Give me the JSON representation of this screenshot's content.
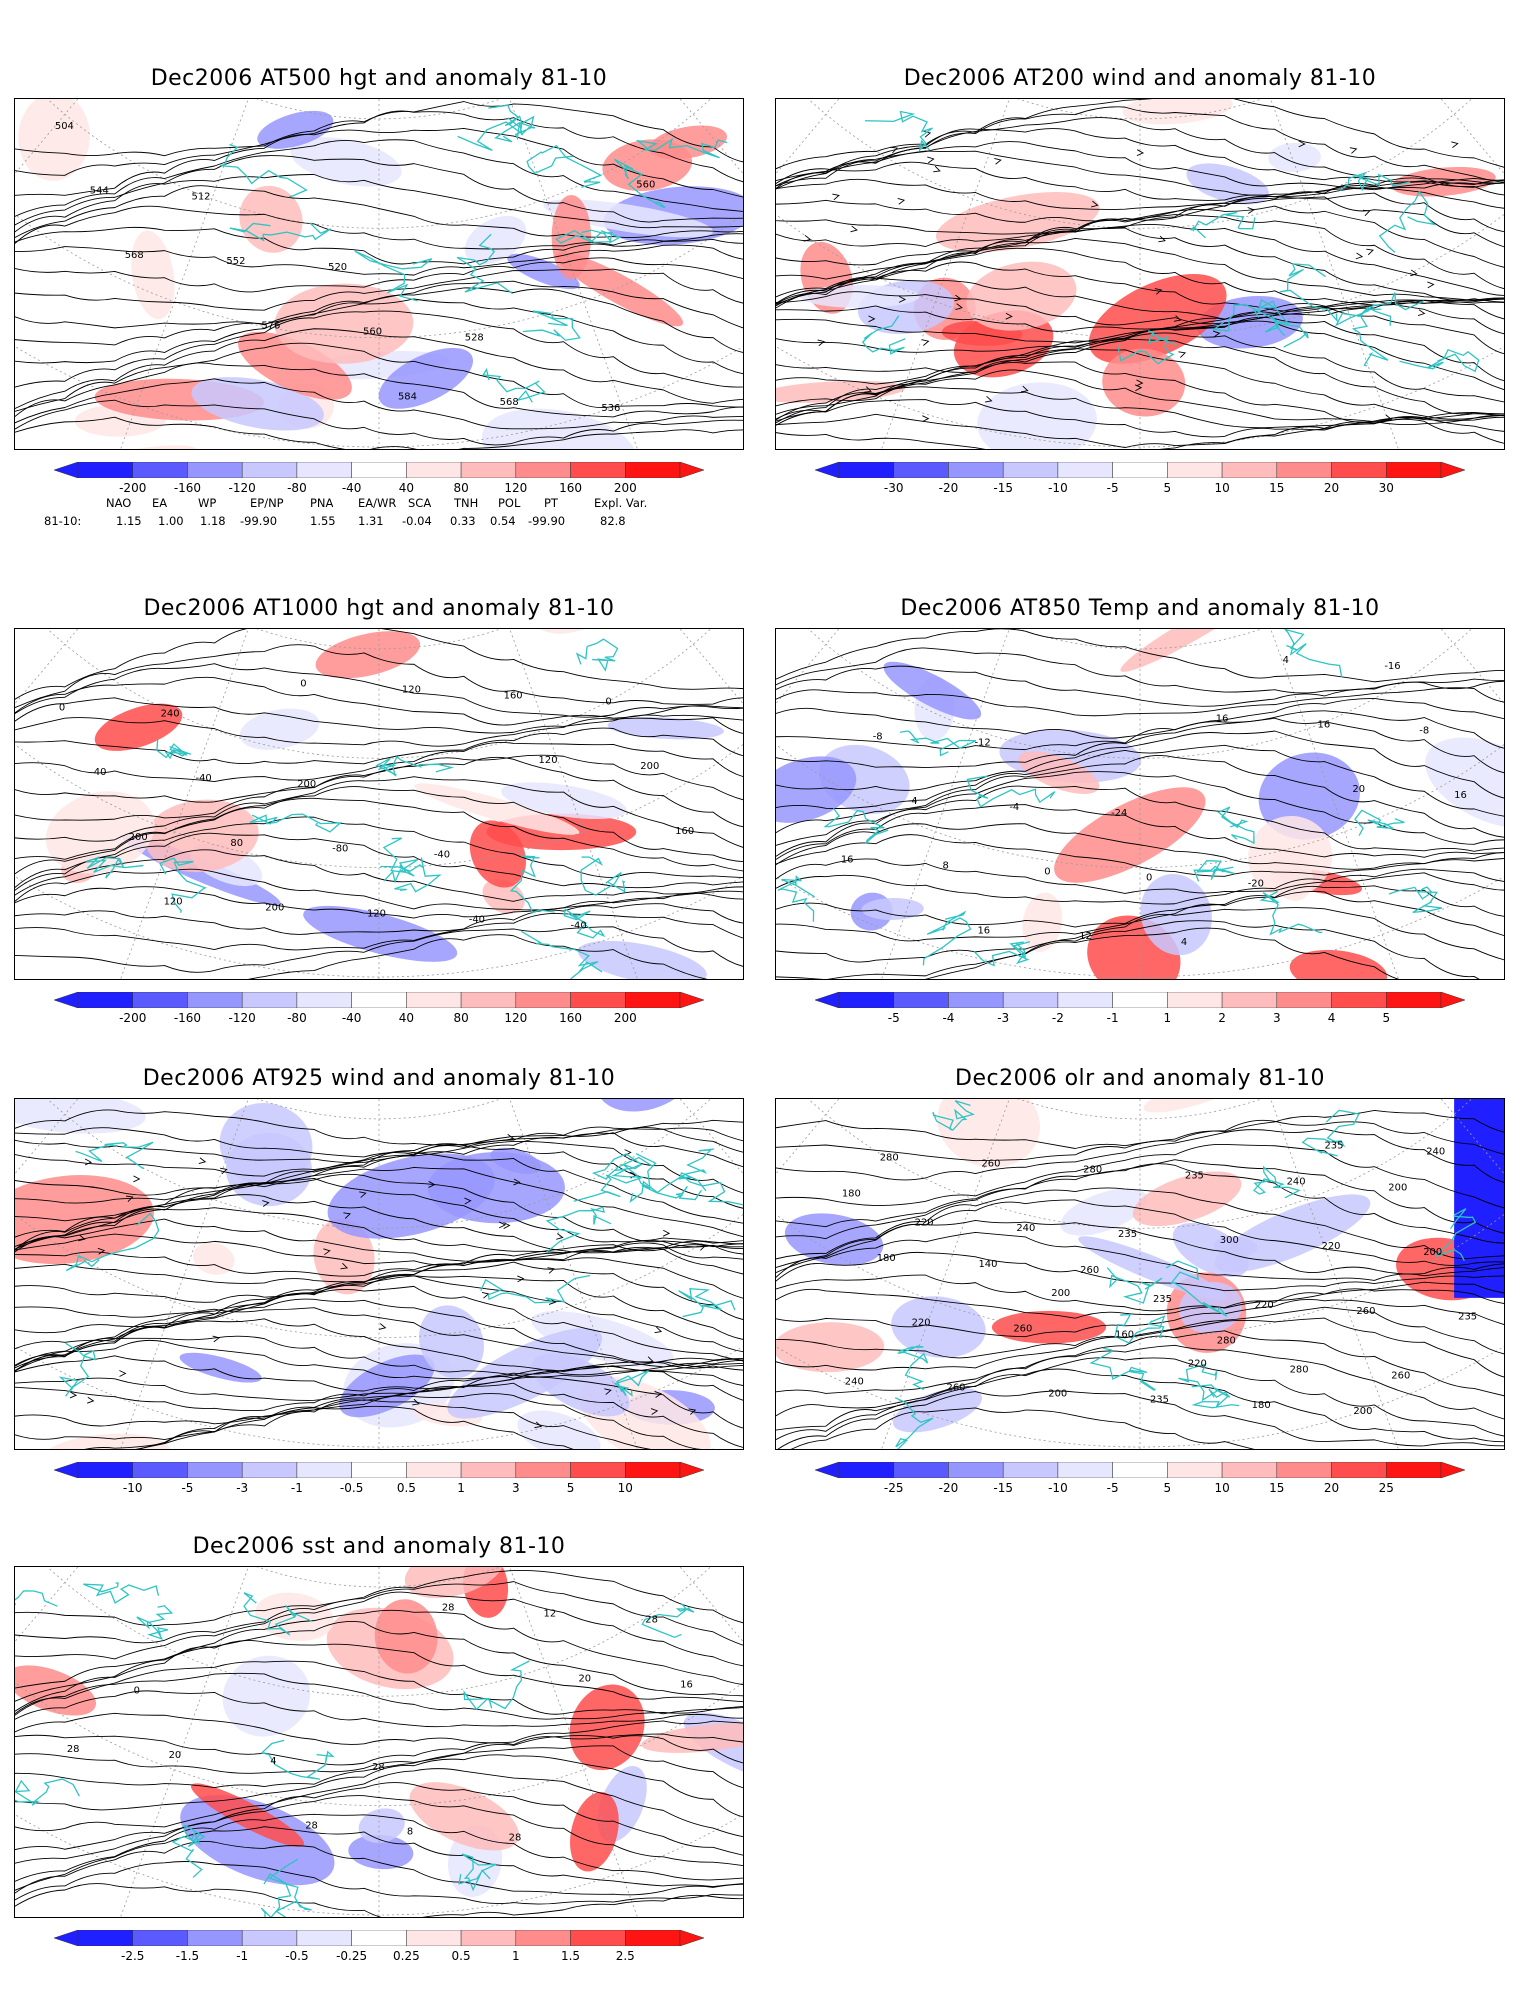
{
  "palette": {
    "blue": [
      "#1f1fff",
      "#5a5aff",
      "#9696ff",
      "#c8c8ff",
      "#e6e6ff"
    ],
    "red": [
      "#ffe6e6",
      "#ffbcbc",
      "#ff8c8c",
      "#ff4c4c",
      "#ff1414"
    ],
    "coast": "#2ec4c4",
    "contour": "#000000"
  },
  "panels": [
    {
      "id": "hgt500",
      "title": "Dec2006 AT500 hgt and anomaly 81-10",
      "ticks": [
        "-200",
        "-160",
        "-120",
        "-80",
        "-40",
        "40",
        "80",
        "120",
        "160",
        "200"
      ],
      "contour_labels": [
        "504",
        "512",
        "520",
        "528",
        "536",
        "544",
        "552",
        "560",
        "568",
        "560",
        "568",
        "576",
        "584"
      ]
    },
    {
      "id": "wind200",
      "title": "Dec2006 AT200 wind and anomaly 81-10",
      "ticks": [
        "-30",
        "-20",
        "-15",
        "-10",
        "-5",
        "5",
        "10",
        "15",
        "20",
        "30"
      ],
      "contour_labels": []
    },
    {
      "id": "hgt1000",
      "title": "Dec2006 AT1000 hgt and anomaly 81-10",
      "ticks": [
        "-200",
        "-160",
        "-120",
        "-80",
        "-40",
        "40",
        "80",
        "120",
        "160",
        "200"
      ],
      "contour_labels": [
        "240",
        "200",
        "-40",
        "-40",
        "0",
        "-40",
        "-80",
        "-40",
        "0",
        "40",
        "80",
        "120",
        "160",
        "200",
        "200",
        "200",
        "120",
        "120",
        "160",
        "120",
        "0"
      ]
    },
    {
      "id": "temp850",
      "title": "Dec2006 AT850 Temp and anomaly 81-10",
      "ticks": [
        "-5",
        "-4",
        "-3",
        "-2",
        "-1",
        "1",
        "2",
        "3",
        "4",
        "5"
      ],
      "contour_labels": [
        "-12",
        "-24",
        "-20",
        "-16",
        "-8",
        "-4",
        "0",
        "4",
        "-8",
        "-4",
        "0",
        "4",
        "16",
        "16",
        "8",
        "12",
        "16",
        "20",
        "16",
        "16"
      ]
    },
    {
      "id": "wind925",
      "title": "Dec2006 AT925 wind and anomaly 81-10",
      "ticks": [
        "-10",
        "-5",
        "-3",
        "-1",
        "-0.5",
        "0.5",
        "1",
        "3",
        "5",
        "10"
      ],
      "contour_labels": []
    },
    {
      "id": "olr",
      "title": "Dec2006 olr and anomaly 81-10",
      "ticks": [
        "-25",
        "-20",
        "-15",
        "-10",
        "-5",
        "5",
        "10",
        "15",
        "20",
        "25"
      ],
      "contour_labels": [
        "260",
        "280",
        "200",
        "180",
        "140",
        "160",
        "180",
        "200",
        "180",
        "260",
        "235",
        "240",
        "200",
        "220",
        "200",
        "235",
        "220",
        "235",
        "260",
        "280",
        "300",
        "260",
        "240",
        "260",
        "235",
        "220",
        "260",
        "280",
        "240",
        "235",
        "280",
        "240",
        "220",
        "200",
        "220",
        "235"
      ]
    },
    {
      "id": "sst",
      "title": "Dec2006 sst and anomaly 81-10",
      "ticks": [
        "-2.5",
        "-1.5",
        "-1",
        "-0.5",
        "-0.25",
        "0.25",
        "0.5",
        "1",
        "1.5",
        "2.5"
      ],
      "contour_labels": [
        "28",
        "28",
        "28",
        "0",
        "4",
        "8",
        "12",
        "16",
        "20",
        "28",
        "28",
        "20",
        "28"
      ]
    }
  ],
  "teleconnection": {
    "headers": [
      "NAO",
      "EA",
      "WP",
      "EP/NP",
      "PNA",
      "EA/WR",
      "SCA",
      "TNH",
      "POL",
      "PT",
      "Expl. Var."
    ],
    "row_label": "81-10:",
    "values": [
      "1.15",
      "1.00",
      "1.18",
      "-99.90",
      "1.55",
      "1.31",
      "-0.04",
      "0.33",
      "0.54",
      "-99.90",
      "82.8"
    ]
  }
}
